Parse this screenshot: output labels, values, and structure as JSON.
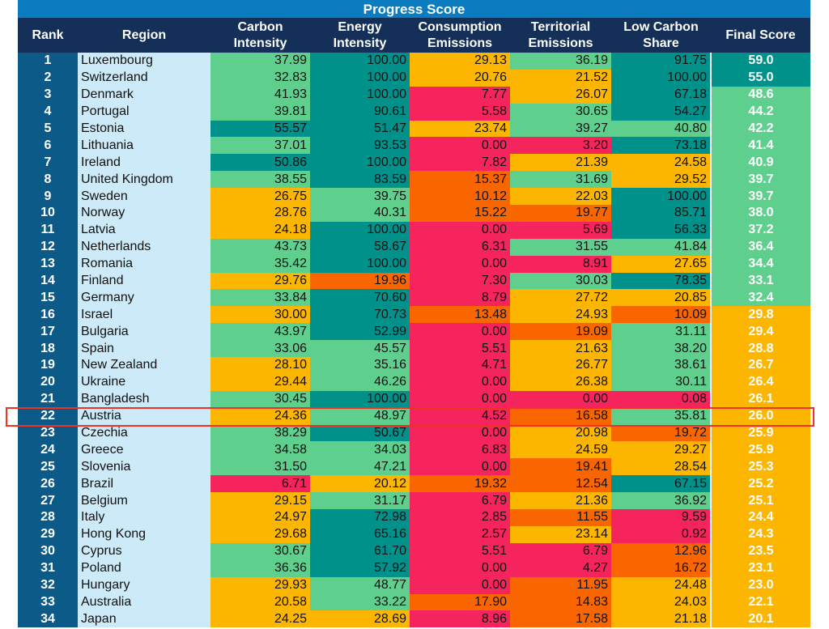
{
  "chart_data": {
    "type": "table",
    "title": "Progress Score",
    "columns": [
      "Rank",
      "Region",
      "Carbon Intensity",
      "Energy Intensity",
      "Consumption Emissions",
      "Territorial Emissions",
      "Low Carbon Share",
      "Final Score"
    ],
    "highlighted_region": "Austria",
    "colors": {
      "teal": "#00918a",
      "green": "#5fcf8e",
      "amber": "#fdb600",
      "orange": "#f96600",
      "red": "#f5245c"
    },
    "rows": [
      [
        "1",
        "Luxembourg",
        "37.99",
        "100.00",
        "29.13",
        "36.19",
        "91.75",
        "59.0"
      ],
      [
        "2",
        "Switzerland",
        "32.83",
        "100.00",
        "20.76",
        "21.52",
        "100.00",
        "55.0"
      ],
      [
        "3",
        "Denmark",
        "41.93",
        "100.00",
        "7.77",
        "26.07",
        "67.18",
        "48.6"
      ],
      [
        "4",
        "Portugal",
        "39.81",
        "90.61",
        "5.58",
        "30.65",
        "54.27",
        "44.2"
      ],
      [
        "5",
        "Estonia",
        "55.57",
        "51.47",
        "23.74",
        "39.27",
        "40.80",
        "42.2"
      ],
      [
        "6",
        "Lithuania",
        "37.01",
        "93.53",
        "0.00",
        "3.20",
        "73.18",
        "41.4"
      ],
      [
        "7",
        "Ireland",
        "50.86",
        "100.00",
        "7.82",
        "21.39",
        "24.58",
        "40.9"
      ],
      [
        "8",
        "United Kingdom",
        "38.55",
        "83.59",
        "15.37",
        "31.69",
        "29.52",
        "39.7"
      ],
      [
        "9",
        "Sweden",
        "26.75",
        "39.75",
        "10.12",
        "22.03",
        "100.00",
        "39.7"
      ],
      [
        "10",
        "Norway",
        "28.76",
        "40.31",
        "15.22",
        "19.77",
        "85.71",
        "38.0"
      ],
      [
        "11",
        "Latvia",
        "24.18",
        "100.00",
        "0.00",
        "5.69",
        "56.33",
        "37.2"
      ],
      [
        "12",
        "Netherlands",
        "43.73",
        "58.67",
        "6.31",
        "31.55",
        "41.84",
        "36.4"
      ],
      [
        "13",
        "Romania",
        "35.42",
        "100.00",
        "0.00",
        "8.91",
        "27.65",
        "34.4"
      ],
      [
        "14",
        "Finland",
        "29.76",
        "19.96",
        "7.30",
        "30.03",
        "78.35",
        "33.1"
      ],
      [
        "15",
        "Germany",
        "33.84",
        "70.60",
        "8.79",
        "27.72",
        "20.85",
        "32.4"
      ],
      [
        "16",
        "Israel",
        "30.00",
        "70.73",
        "13.48",
        "24.93",
        "10.09",
        "29.8"
      ],
      [
        "17",
        "Bulgaria",
        "43.97",
        "52.99",
        "0.00",
        "19.09",
        "31.11",
        "29.4"
      ],
      [
        "18",
        "Spain",
        "33.06",
        "45.57",
        "5.51",
        "21.63",
        "38.20",
        "28.8"
      ],
      [
        "19",
        "New Zealand",
        "28.10",
        "35.16",
        "4.71",
        "26.77",
        "38.61",
        "26.7"
      ],
      [
        "20",
        "Ukraine",
        "29.44",
        "46.26",
        "0.00",
        "26.38",
        "30.11",
        "26.4"
      ],
      [
        "21",
        "Bangladesh",
        "30.45",
        "100.00",
        "0.00",
        "0.00",
        "0.08",
        "26.1"
      ],
      [
        "22",
        "Austria",
        "24.36",
        "48.97",
        "4.52",
        "16.58",
        "35.81",
        "26.0"
      ],
      [
        "23",
        "Czechia",
        "38.29",
        "50.67",
        "0.00",
        "20.98",
        "19.72",
        "25.9"
      ],
      [
        "24",
        "Greece",
        "34.58",
        "34.03",
        "6.83",
        "24.59",
        "29.27",
        "25.9"
      ],
      [
        "25",
        "Slovenia",
        "31.50",
        "47.21",
        "0.00",
        "19.41",
        "28.54",
        "25.3"
      ],
      [
        "26",
        "Brazil",
        "6.71",
        "20.12",
        "19.32",
        "12.54",
        "67.15",
        "25.2"
      ],
      [
        "27",
        "Belgium",
        "29.15",
        "31.17",
        "6.79",
        "21.36",
        "36.92",
        "25.1"
      ],
      [
        "28",
        "Italy",
        "24.97",
        "72.98",
        "2.85",
        "11.55",
        "9.59",
        "24.4"
      ],
      [
        "29",
        "Hong Kong",
        "29.68",
        "65.16",
        "2.57",
        "23.14",
        "0.92",
        "24.3"
      ],
      [
        "30",
        "Cyprus",
        "30.67",
        "61.70",
        "5.51",
        "6.79",
        "12.96",
        "23.5"
      ],
      [
        "31",
        "Poland",
        "36.36",
        "57.92",
        "0.00",
        "4.27",
        "16.72",
        "23.1"
      ],
      [
        "32",
        "Hungary",
        "29.93",
        "48.77",
        "0.00",
        "11.95",
        "24.48",
        "23.0"
      ],
      [
        "33",
        "Australia",
        "20.58",
        "33.22",
        "17.90",
        "14.83",
        "24.03",
        "22.1"
      ],
      [
        "34",
        "Japan",
        "24.25",
        "28.69",
        "8.96",
        "17.58",
        "21.18",
        "20.1"
      ]
    ]
  }
}
